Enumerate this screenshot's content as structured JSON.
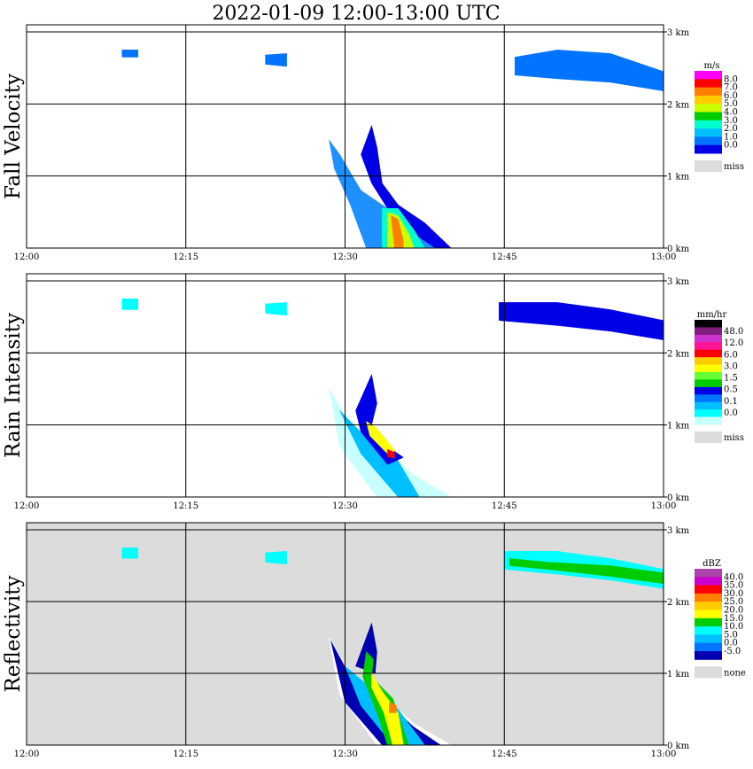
{
  "title": "2022-01-09   12:00-13:00 UTC",
  "colors": {
    "frame": "#000000",
    "missing": "#dcdcdc",
    "background": "#ffffff"
  },
  "chart_data": [
    {
      "type": "heatmap",
      "title": "Fall Velocity",
      "unit": "m/s",
      "x_ticks": [
        "12:00",
        "12:15",
        "12:30",
        "12:45",
        "13:00"
      ],
      "y_ticks": [
        "0 km",
        "1 km",
        "2 km",
        "3 km"
      ],
      "xlim": [
        "12:00",
        "13:00"
      ],
      "ylim": [
        0,
        3.0
      ],
      "grid": true,
      "missing_background": false,
      "legend": {
        "labels": [
          "8.0",
          "7.0",
          "6.0",
          "5.0",
          "4.0",
          "3.0",
          "2.0",
          "1.0",
          "0.0"
        ],
        "colors": [
          "#ff00ff",
          "#ff0000",
          "#ff7f00",
          "#ffcc00",
          "#ccff00",
          "#00cc00",
          "#00ffcc",
          "#00bfff",
          "#0073ff",
          "#0000e6"
        ],
        "missing_label": "miss"
      },
      "regions": [
        {
          "color": "#1e90ff",
          "points": [
            [
              "12:28:30",
              1.5
            ],
            [
              "12:29:30",
              1.3
            ],
            [
              "12:31:30",
              0.8
            ],
            [
              "12:33:30",
              0.6
            ],
            [
              "12:36:30",
              0.3
            ],
            [
              "12:40:00",
              0.0
            ],
            [
              "12:32:00",
              0.0
            ],
            [
              "12:30:30",
              0.6
            ],
            [
              "12:29:00",
              1.1
            ]
          ]
        },
        {
          "color": "#0000e6",
          "points": [
            [
              "12:32:30",
              1.7
            ],
            [
              "12:33:00",
              1.4
            ],
            [
              "12:33:30",
              0.9
            ],
            [
              "12:35:00",
              0.6
            ],
            [
              "12:37:30",
              0.35
            ],
            [
              "12:40:00",
              0.0
            ],
            [
              "12:38:30",
              0.0
            ],
            [
              "12:36:00",
              0.25
            ],
            [
              "12:34:00",
              0.55
            ],
            [
              "12:32:30",
              0.9
            ],
            [
              "12:31:30",
              1.3
            ]
          ]
        },
        {
          "color": "#00ffcc",
          "points": [
            [
              "12:33:30",
              0.55
            ],
            [
              "12:35:00",
              0.55
            ],
            [
              "12:36:30",
              0.25
            ],
            [
              "12:37:30",
              0.0
            ],
            [
              "12:33:30",
              0.0
            ]
          ]
        },
        {
          "color": "#ccff00",
          "points": [
            [
              "12:34:00",
              0.5
            ],
            [
              "12:35:00",
              0.45
            ],
            [
              "12:36:00",
              0.2
            ],
            [
              "12:36:30",
              0.0
            ],
            [
              "12:34:00",
              0.0
            ]
          ]
        },
        {
          "color": "#ff7f00",
          "points": [
            [
              "12:34:20",
              0.45
            ],
            [
              "12:35:00",
              0.4
            ],
            [
              "12:35:30",
              0.1
            ],
            [
              "12:35:30",
              0.0
            ],
            [
              "12:34:40",
              0.0
            ]
          ]
        },
        {
          "color": "#0073ff",
          "points": [
            [
              "12:46:00",
              2.65
            ],
            [
              "12:50:00",
              2.75
            ],
            [
              "12:55:00",
              2.7
            ],
            [
              "13:00:00",
              2.45
            ],
            [
              "13:00:00",
              2.18
            ],
            [
              "12:55:00",
              2.3
            ],
            [
              "12:50:00",
              2.35
            ],
            [
              "12:46:00",
              2.4
            ]
          ]
        },
        {
          "color": "#0073ff",
          "points": [
            [
              "12:09:00",
              2.75
            ],
            [
              "12:10:30",
              2.75
            ],
            [
              "12:10:30",
              2.65
            ],
            [
              "12:09:00",
              2.65
            ]
          ]
        },
        {
          "color": "#0073ff",
          "points": [
            [
              "12:22:30",
              2.68
            ],
            [
              "12:24:30",
              2.7
            ],
            [
              "12:24:30",
              2.52
            ],
            [
              "12:22:30",
              2.55
            ]
          ]
        }
      ]
    },
    {
      "type": "heatmap",
      "title": "Rain Intensity",
      "unit": "mm/hr",
      "x_ticks": [
        "12:00",
        "12:15",
        "12:30",
        "12:45",
        "13:00"
      ],
      "y_ticks": [
        "0 km",
        "1 km",
        "2 km",
        "3 km"
      ],
      "xlim": [
        "12:00",
        "13:00"
      ],
      "ylim": [
        0,
        3.0
      ],
      "grid": true,
      "missing_background": false,
      "legend": {
        "labels": [
          "48.0",
          "12.0",
          "6.0",
          "3.0",
          "1.5",
          "0.5",
          "0.1",
          "0.0"
        ],
        "colors": [
          "#000000",
          "#7f1f7f",
          "#cc33cc",
          "#ff1493",
          "#ff0000",
          "#ffcc00",
          "#ffff00",
          "#66ff33",
          "#00cc00",
          "#0000e6",
          "#0073ff",
          "#00bfff",
          "#00ffff",
          "#c8ffff"
        ],
        "missing_label": "miss"
      },
      "regions": [
        {
          "color": "#c8ffff",
          "points": [
            [
              "12:28:30",
              1.5
            ],
            [
              "12:30:30",
              1.0
            ],
            [
              "12:33:30",
              0.7
            ],
            [
              "12:36:30",
              0.3
            ],
            [
              "12:40:00",
              0.0
            ],
            [
              "12:33:00",
              0.0
            ],
            [
              "12:29:30",
              0.7
            ]
          ]
        },
        {
          "color": "#00bfff",
          "points": [
            [
              "12:29:30",
              1.2
            ],
            [
              "12:31:30",
              0.9
            ],
            [
              "12:35:00",
              0.5
            ],
            [
              "12:37:00",
              0.0
            ],
            [
              "12:35:00",
              0.0
            ],
            [
              "12:31:30",
              0.6
            ]
          ]
        },
        {
          "color": "#0000e6",
          "points": [
            [
              "12:32:30",
              1.7
            ],
            [
              "12:33:00",
              1.3
            ],
            [
              "12:32:30",
              1.0
            ],
            [
              "12:34:30",
              0.65
            ],
            [
              "12:35:30",
              0.55
            ],
            [
              "12:34:00",
              0.45
            ],
            [
              "12:31:30",
              0.9
            ],
            [
              "12:31:00",
              1.2
            ]
          ]
        },
        {
          "color": "#ffff00",
          "points": [
            [
              "12:32:00",
              1.05
            ],
            [
              "12:33:00",
              0.95
            ],
            [
              "12:34:40",
              0.65
            ],
            [
              "12:34:20",
              0.55
            ],
            [
              "12:32:20",
              0.85
            ]
          ]
        },
        {
          "color": "#ff0000",
          "points": [
            [
              "12:34:00",
              0.66
            ],
            [
              "12:34:40",
              0.62
            ],
            [
              "12:34:40",
              0.54
            ],
            [
              "12:34:00",
              0.56
            ]
          ]
        },
        {
          "color": "#0000e6",
          "points": [
            [
              "12:44:30",
              2.7
            ],
            [
              "12:50:00",
              2.7
            ],
            [
              "12:55:00",
              2.6
            ],
            [
              "13:00:00",
              2.45
            ],
            [
              "13:00:00",
              2.18
            ],
            [
              "12:55:00",
              2.3
            ],
            [
              "12:50:00",
              2.38
            ],
            [
              "12:44:30",
              2.45
            ]
          ]
        },
        {
          "color": "#00ffff",
          "points": [
            [
              "12:09:00",
              2.75
            ],
            [
              "12:10:30",
              2.75
            ],
            [
              "12:10:30",
              2.6
            ],
            [
              "12:09:00",
              2.6
            ]
          ]
        },
        {
          "color": "#00ffff",
          "points": [
            [
              "12:22:30",
              2.68
            ],
            [
              "12:24:30",
              2.7
            ],
            [
              "12:24:30",
              2.52
            ],
            [
              "12:22:30",
              2.55
            ]
          ]
        }
      ]
    },
    {
      "type": "heatmap",
      "title": "Reflectivity",
      "unit": "dBZ",
      "x_ticks": [
        "12:00",
        "12:15",
        "12:30",
        "12:45",
        "13:00"
      ],
      "y_ticks": [
        "0 km",
        "1 km",
        "2 km",
        "3 km"
      ],
      "xlim": [
        "12:00",
        "13:00"
      ],
      "ylim": [
        0,
        3.0
      ],
      "grid": true,
      "missing_background": true,
      "legend": {
        "labels": [
          "40.0",
          "35.0",
          "30.0",
          "25.0",
          "20.0",
          "15.0",
          "10.0",
          "5.0",
          "0.0",
          "-5.0"
        ],
        "colors": [
          "#aa44aa",
          "#cc00cc",
          "#ff0000",
          "#ff7f00",
          "#ffcc00",
          "#ffff00",
          "#00cc00",
          "#00ffff",
          "#00bfff",
          "#0073ff",
          "#0000b0"
        ],
        "missing_label": "none"
      },
      "regions": [
        {
          "color": "#ffffff",
          "points": [
            [
              "12:28:30",
              1.5
            ],
            [
              "12:30:30",
              1.0
            ],
            [
              "12:33:30",
              0.7
            ],
            [
              "12:36:30",
              0.3
            ],
            [
              "12:40:00",
              0.0
            ],
            [
              "12:33:00",
              0.0
            ],
            [
              "12:29:30",
              0.7
            ]
          ]
        },
        {
          "color": "#0000b0",
          "points": [
            [
              "12:28:40",
              1.45
            ],
            [
              "12:30:30",
              0.95
            ],
            [
              "12:33:30",
              0.65
            ],
            [
              "12:36:30",
              0.25
            ],
            [
              "12:39:00",
              0.0
            ],
            [
              "12:33:30",
              0.0
            ],
            [
              "12:30:00",
              0.6
            ]
          ]
        },
        {
          "color": "#00bfff",
          "points": [
            [
              "12:30:00",
              1.1
            ],
            [
              "12:32:00",
              0.85
            ],
            [
              "12:35:00",
              0.5
            ],
            [
              "12:37:30",
              0.0
            ],
            [
              "12:34:30",
              0.0
            ],
            [
              "12:31:30",
              0.55
            ]
          ]
        },
        {
          "color": "#0000b0",
          "points": [
            [
              "12:32:30",
              1.7
            ],
            [
              "12:33:00",
              1.3
            ],
            [
              "12:32:50",
              1.0
            ],
            [
              "12:31:00",
              1.1
            ]
          ]
        },
        {
          "color": "#00cc00",
          "points": [
            [
              "12:32:00",
              1.3
            ],
            [
              "12:32:40",
              1.2
            ],
            [
              "12:32:30",
              0.95
            ],
            [
              "12:34:30",
              0.65
            ],
            [
              "12:36:00",
              0.0
            ],
            [
              "12:34:00",
              0.0
            ],
            [
              "12:33:00",
              0.45
            ],
            [
              "12:31:40",
              0.95
            ]
          ]
        },
        {
          "color": "#ffff00",
          "points": [
            [
              "12:32:30",
              1.0
            ],
            [
              "12:33:30",
              0.75
            ],
            [
              "12:35:00",
              0.45
            ],
            [
              "12:35:30",
              0.0
            ],
            [
              "12:34:30",
              0.0
            ],
            [
              "12:33:40",
              0.45
            ],
            [
              "12:32:30",
              0.8
            ]
          ]
        },
        {
          "color": "#ff7f00",
          "points": [
            [
              "12:34:10",
              0.6
            ],
            [
              "12:34:50",
              0.55
            ],
            [
              "12:34:50",
              0.45
            ],
            [
              "12:34:10",
              0.45
            ]
          ]
        },
        {
          "color": "#00ffff",
          "points": [
            [
              "12:45:00",
              2.7
            ],
            [
              "12:50:00",
              2.7
            ],
            [
              "12:55:00",
              2.6
            ],
            [
              "13:00:00",
              2.45
            ],
            [
              "13:00:00",
              2.18
            ],
            [
              "12:55:00",
              2.3
            ],
            [
              "12:50:00",
              2.38
            ],
            [
              "12:45:00",
              2.45
            ]
          ]
        },
        {
          "color": "#00cc00",
          "points": [
            [
              "12:45:30",
              2.6
            ],
            [
              "12:49:00",
              2.55
            ],
            [
              "12:55:00",
              2.5
            ],
            [
              "13:00:00",
              2.4
            ],
            [
              "13:00:00",
              2.25
            ],
            [
              "12:55:00",
              2.35
            ],
            [
              "12:49:00",
              2.45
            ],
            [
              "12:45:30",
              2.5
            ]
          ]
        },
        {
          "color": "#00ffff",
          "points": [
            [
              "12:09:00",
              2.75
            ],
            [
              "12:10:30",
              2.75
            ],
            [
              "12:10:30",
              2.6
            ],
            [
              "12:09:00",
              2.6
            ]
          ]
        },
        {
          "color": "#00ffff",
          "points": [
            [
              "12:22:30",
              2.68
            ],
            [
              "12:24:30",
              2.7
            ],
            [
              "12:24:30",
              2.52
            ],
            [
              "12:22:30",
              2.55
            ]
          ]
        }
      ]
    }
  ]
}
